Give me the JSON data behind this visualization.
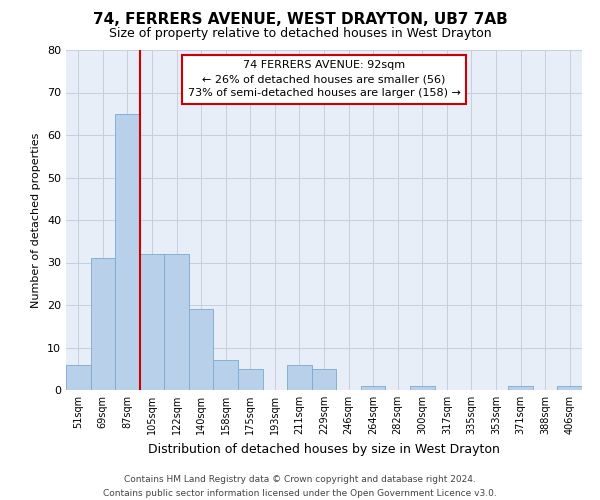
{
  "title": "74, FERRERS AVENUE, WEST DRAYTON, UB7 7AB",
  "subtitle": "Size of property relative to detached houses in West Drayton",
  "xlabel": "Distribution of detached houses by size in West Drayton",
  "ylabel": "Number of detached properties",
  "bar_labels": [
    "51sqm",
    "69sqm",
    "87sqm",
    "105sqm",
    "122sqm",
    "140sqm",
    "158sqm",
    "175sqm",
    "193sqm",
    "211sqm",
    "229sqm",
    "246sqm",
    "264sqm",
    "282sqm",
    "300sqm",
    "317sqm",
    "335sqm",
    "353sqm",
    "371sqm",
    "388sqm",
    "406sqm"
  ],
  "bar_values": [
    6,
    31,
    65,
    32,
    32,
    19,
    7,
    5,
    0,
    6,
    5,
    0,
    1,
    0,
    1,
    0,
    0,
    0,
    1,
    0,
    1
  ],
  "bar_color": "#b8d0ea",
  "bar_edge_color": "#7aaacf",
  "highlight_bar_index": 2,
  "highlight_line_color": "#cc0000",
  "ylim": [
    0,
    80
  ],
  "yticks": [
    0,
    10,
    20,
    30,
    40,
    50,
    60,
    70,
    80
  ],
  "annotation_title": "74 FERRERS AVENUE: 92sqm",
  "annotation_line1": "← 26% of detached houses are smaller (56)",
  "annotation_line2": "73% of semi-detached houses are larger (158) →",
  "footer_line1": "Contains HM Land Registry data © Crown copyright and database right 2024.",
  "footer_line2": "Contains public sector information licensed under the Open Government Licence v3.0.",
  "background_color": "#ffffff",
  "plot_bg_color": "#e8eef7"
}
